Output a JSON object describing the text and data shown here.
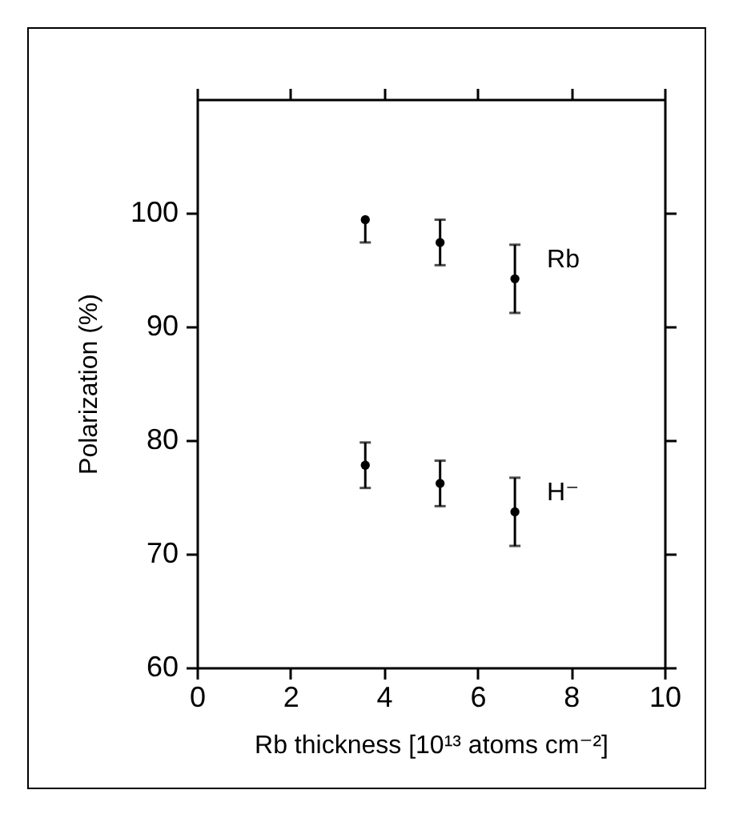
{
  "chart_data": {
    "type": "scatter",
    "xlabel": "Rb thickness [10¹³ atoms cm⁻²]",
    "ylabel": "Polarization (%)",
    "x": [
      3.6,
      5.2,
      6.8
    ],
    "series": [
      {
        "name": "Rb",
        "color": "#000000",
        "values": [
          99.4,
          97.4,
          94.2
        ],
        "errors": [
          [
            97.4,
            99.4
          ],
          2.0,
          3.0
        ]
      },
      {
        "name": "H⁻",
        "color": "#000000",
        "values": [
          77.8,
          76.2,
          73.7
        ],
        "errors": [
          2.0,
          2.0,
          3.0
        ]
      }
    ],
    "xlim": [
      0,
      10
    ],
    "xticks": [
      0,
      2,
      4,
      6,
      8,
      10
    ],
    "ylim": [
      60,
      110
    ],
    "yticks": [
      60,
      70,
      80,
      90,
      100
    ],
    "marker": "circle"
  }
}
